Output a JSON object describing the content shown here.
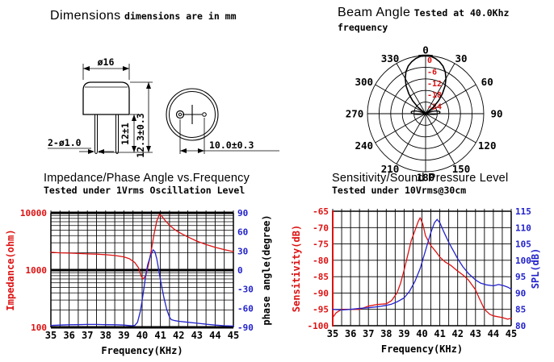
{
  "colors": {
    "red": "#dd1111",
    "blue": "#2222cc",
    "black": "#000000"
  },
  "panels": {
    "dimensions": {
      "heading": "Dimensions",
      "note": "dimensions are in mm",
      "labels": {
        "cap_diameter": "ø16",
        "lead_diameter": "2-ø1.0",
        "lead_length": "12±1",
        "height": "12.3±0.3",
        "pin_spacing": "10.0±0.3"
      }
    },
    "beam": {
      "heading": "Beam Angle",
      "condition": "Tested at 40.0Khz",
      "condition_line2": "frequency"
    },
    "impedance": {
      "heading": "Impedance/Phase Angle vs.Frequency",
      "condition": "Tested under 1Vrms Oscillation Level"
    },
    "sensitivity": {
      "heading": "Sensitivity/Sound Pressure Level",
      "condition": "Tested under 10Vrms@30cm"
    }
  },
  "chart_data": [
    {
      "type": "polar",
      "title": "Beam Angle",
      "condition": "Tested at 40.0Khz frequency",
      "angle_ticks_deg": [
        0,
        30,
        60,
        90,
        120,
        150,
        180,
        210,
        240,
        270,
        300,
        330
      ],
      "ring_labels_db": [
        0,
        -6,
        -12,
        -18,
        -24
      ],
      "r_center_db": -30,
      "main_lobe_deg_db": [
        [
          -56,
          -30
        ],
        [
          -50,
          -25
        ],
        [
          -45,
          -20.5
        ],
        [
          -40,
          -16.5
        ],
        [
          -35,
          -12.5
        ],
        [
          -30,
          -9
        ],
        [
          -25,
          -6
        ],
        [
          -20,
          -3.8
        ],
        [
          -15,
          -2.2
        ],
        [
          -10,
          -1
        ],
        [
          -5,
          -0.2
        ],
        [
          0,
          0
        ],
        [
          5,
          -0.2
        ],
        [
          10,
          -1
        ],
        [
          15,
          -2.2
        ],
        [
          20,
          -3.8
        ],
        [
          25,
          -6
        ],
        [
          30,
          -9
        ],
        [
          35,
          -12.5
        ],
        [
          40,
          -16.5
        ],
        [
          45,
          -20.5
        ],
        [
          50,
          -25
        ],
        [
          56,
          -30
        ]
      ],
      "side_lobes": [
        {
          "center_deg": 84,
          "half_width_deg": 18,
          "peak_db": -22.5
        },
        {
          "center_deg": -84,
          "half_width_deg": 18,
          "peak_db": -22.5
        }
      ]
    },
    {
      "type": "line",
      "title": "Impedance/Phase Angle vs.Frequency",
      "condition": "Tested under 1Vrms Oscillation Level",
      "x_axis": {
        "label": "Frequency(KHz)",
        "min": 35,
        "max": 45,
        "ticks": [
          35,
          36,
          37,
          38,
          39,
          40,
          41,
          42,
          43,
          44,
          45
        ],
        "grid_step_khz": 0.5
      },
      "y_left": {
        "label": "Impedance(ohm)",
        "scale": "log",
        "min": 100,
        "max": 10000,
        "ticks": [
          10000,
          1000,
          100
        ]
      },
      "y_right": {
        "label": "phase angle(degree)",
        "min": -90,
        "max": 90,
        "ticks": [
          90,
          60,
          30,
          0,
          -30,
          -60,
          -90
        ]
      },
      "series": [
        {
          "name": "impedance_ohm",
          "axis": "left",
          "color": "red",
          "points": [
            [
              35,
              2050
            ],
            [
              35.5,
              2000
            ],
            [
              36,
              1980
            ],
            [
              36.5,
              1950
            ],
            [
              37,
              1920
            ],
            [
              37.5,
              1900
            ],
            [
              38,
              1860
            ],
            [
              38.5,
              1800
            ],
            [
              39,
              1700
            ],
            [
              39.3,
              1580
            ],
            [
              39.6,
              1350
            ],
            [
              39.8,
              1100
            ],
            [
              39.95,
              780
            ],
            [
              40.05,
              700
            ],
            [
              40.2,
              800
            ],
            [
              40.35,
              1250
            ],
            [
              40.5,
              2200
            ],
            [
              40.65,
              4200
            ],
            [
              40.8,
              7200
            ],
            [
              40.95,
              9400
            ],
            [
              41.1,
              8600
            ],
            [
              41.25,
              7400
            ],
            [
              41.5,
              6100
            ],
            [
              41.75,
              5200
            ],
            [
              42,
              4600
            ],
            [
              42.5,
              3800
            ],
            [
              43,
              3200
            ],
            [
              43.5,
              2800
            ],
            [
              44,
              2500
            ],
            [
              44.5,
              2280
            ],
            [
              45,
              2100
            ]
          ]
        },
        {
          "name": "phase_deg",
          "axis": "right",
          "color": "blue",
          "points": [
            [
              35,
              -87
            ],
            [
              35.5,
              -86.5
            ],
            [
              36,
              -86
            ],
            [
              36.5,
              -85.8
            ],
            [
              37,
              -85.5
            ],
            [
              37.5,
              -85.5
            ],
            [
              38,
              -85.8
            ],
            [
              38.5,
              -86
            ],
            [
              39,
              -86.5
            ],
            [
              39.4,
              -87.5
            ],
            [
              39.6,
              -87
            ],
            [
              39.75,
              -82
            ],
            [
              39.9,
              -65
            ],
            [
              40,
              -48
            ],
            [
              40.1,
              -28
            ],
            [
              40.2,
              -8
            ],
            [
              40.3,
              8
            ],
            [
              40.45,
              22
            ],
            [
              40.6,
              32
            ],
            [
              40.7,
              29
            ],
            [
              40.8,
              18
            ],
            [
              40.9,
              2
            ],
            [
              41,
              -15
            ],
            [
              41.1,
              -30
            ],
            [
              41.2,
              -44
            ],
            [
              41.35,
              -62
            ],
            [
              41.5,
              -74
            ],
            [
              41.6,
              -78
            ],
            [
              41.8,
              -79.5
            ],
            [
              42,
              -80.5
            ],
            [
              42.5,
              -82
            ],
            [
              43,
              -83.5
            ],
            [
              43.5,
              -85
            ],
            [
              44,
              -86.5
            ],
            [
              44.5,
              -87.5
            ],
            [
              45,
              -88
            ]
          ]
        }
      ]
    },
    {
      "type": "line",
      "title": "Sensitivity/Sound Pressure Level",
      "condition": "Tested under 10Vrms@30cm",
      "x_axis": {
        "label": "Frequency(KHz)",
        "min": 35,
        "max": 45,
        "ticks": [
          35,
          36,
          37,
          38,
          39,
          40,
          41,
          42,
          43,
          44,
          45
        ],
        "grid_step_khz": 0.5
      },
      "y_left": {
        "label": "Sensitivity(dB)",
        "min": -100,
        "max": -65,
        "ticks": [
          -65,
          -70,
          -75,
          -80,
          -85,
          -90,
          -95,
          -100
        ]
      },
      "y_right": {
        "label": "SPL(dB)",
        "min": 80,
        "max": 115,
        "ticks": [
          115,
          110,
          105,
          100,
          95,
          90,
          85,
          80
        ]
      },
      "series": [
        {
          "name": "sensitivity_db",
          "axis": "left",
          "color": "red",
          "points": [
            [
              35,
              -97.5
            ],
            [
              35.2,
              -96
            ],
            [
              35.5,
              -95
            ],
            [
              36,
              -95
            ],
            [
              36.5,
              -95
            ],
            [
              37,
              -94
            ],
            [
              37.5,
              -93.5
            ],
            [
              38,
              -93.3
            ],
            [
              38.3,
              -92.3
            ],
            [
              38.6,
              -90
            ],
            [
              38.8,
              -87
            ],
            [
              39,
              -83
            ],
            [
              39.2,
              -78.5
            ],
            [
              39.4,
              -74
            ],
            [
              39.6,
              -71
            ],
            [
              39.8,
              -68
            ],
            [
              39.9,
              -67
            ],
            [
              40.05,
              -69
            ],
            [
              40.2,
              -72.5
            ],
            [
              40.5,
              -75.5
            ],
            [
              40.8,
              -77.5
            ],
            [
              41,
              -79
            ],
            [
              41.3,
              -80.5
            ],
            [
              41.6,
              -81.5
            ],
            [
              42,
              -83.3
            ],
            [
              42.3,
              -84.5
            ],
            [
              42.6,
              -86
            ],
            [
              43,
              -89
            ],
            [
              43.2,
              -91.5
            ],
            [
              43.5,
              -95
            ],
            [
              43.8,
              -96.5
            ],
            [
              44,
              -97
            ],
            [
              44.5,
              -97.5
            ],
            [
              44.8,
              -98
            ],
            [
              45,
              -97.7
            ]
          ]
        },
        {
          "name": "spl_db",
          "axis": "right",
          "color": "blue",
          "points": [
            [
              35,
              85
            ],
            [
              35.5,
              84.8
            ],
            [
              36,
              85
            ],
            [
              36.5,
              85.3
            ],
            [
              37,
              85.5
            ],
            [
              37.5,
              85.8
            ],
            [
              38,
              86.2
            ],
            [
              38.3,
              86.6
            ],
            [
              38.6,
              87.3
            ],
            [
              39,
              88.5
            ],
            [
              39.3,
              90.5
            ],
            [
              39.6,
              93.5
            ],
            [
              39.9,
              97.5
            ],
            [
              40.2,
              103
            ],
            [
              40.5,
              108.5
            ],
            [
              40.7,
              111.5
            ],
            [
              40.85,
              112.5
            ],
            [
              41,
              111.5
            ],
            [
              41.2,
              109
            ],
            [
              41.5,
              105.5
            ],
            [
              41.8,
              102.5
            ],
            [
              42,
              100.5
            ],
            [
              42.3,
              98
            ],
            [
              42.6,
              96
            ],
            [
              43,
              94
            ],
            [
              43.3,
              93
            ],
            [
              43.6,
              92.5
            ],
            [
              44,
              92.2
            ],
            [
              44.3,
              92.6
            ],
            [
              44.6,
              92.2
            ],
            [
              44.8,
              91.8
            ],
            [
              45,
              91.2
            ]
          ]
        }
      ]
    }
  ]
}
